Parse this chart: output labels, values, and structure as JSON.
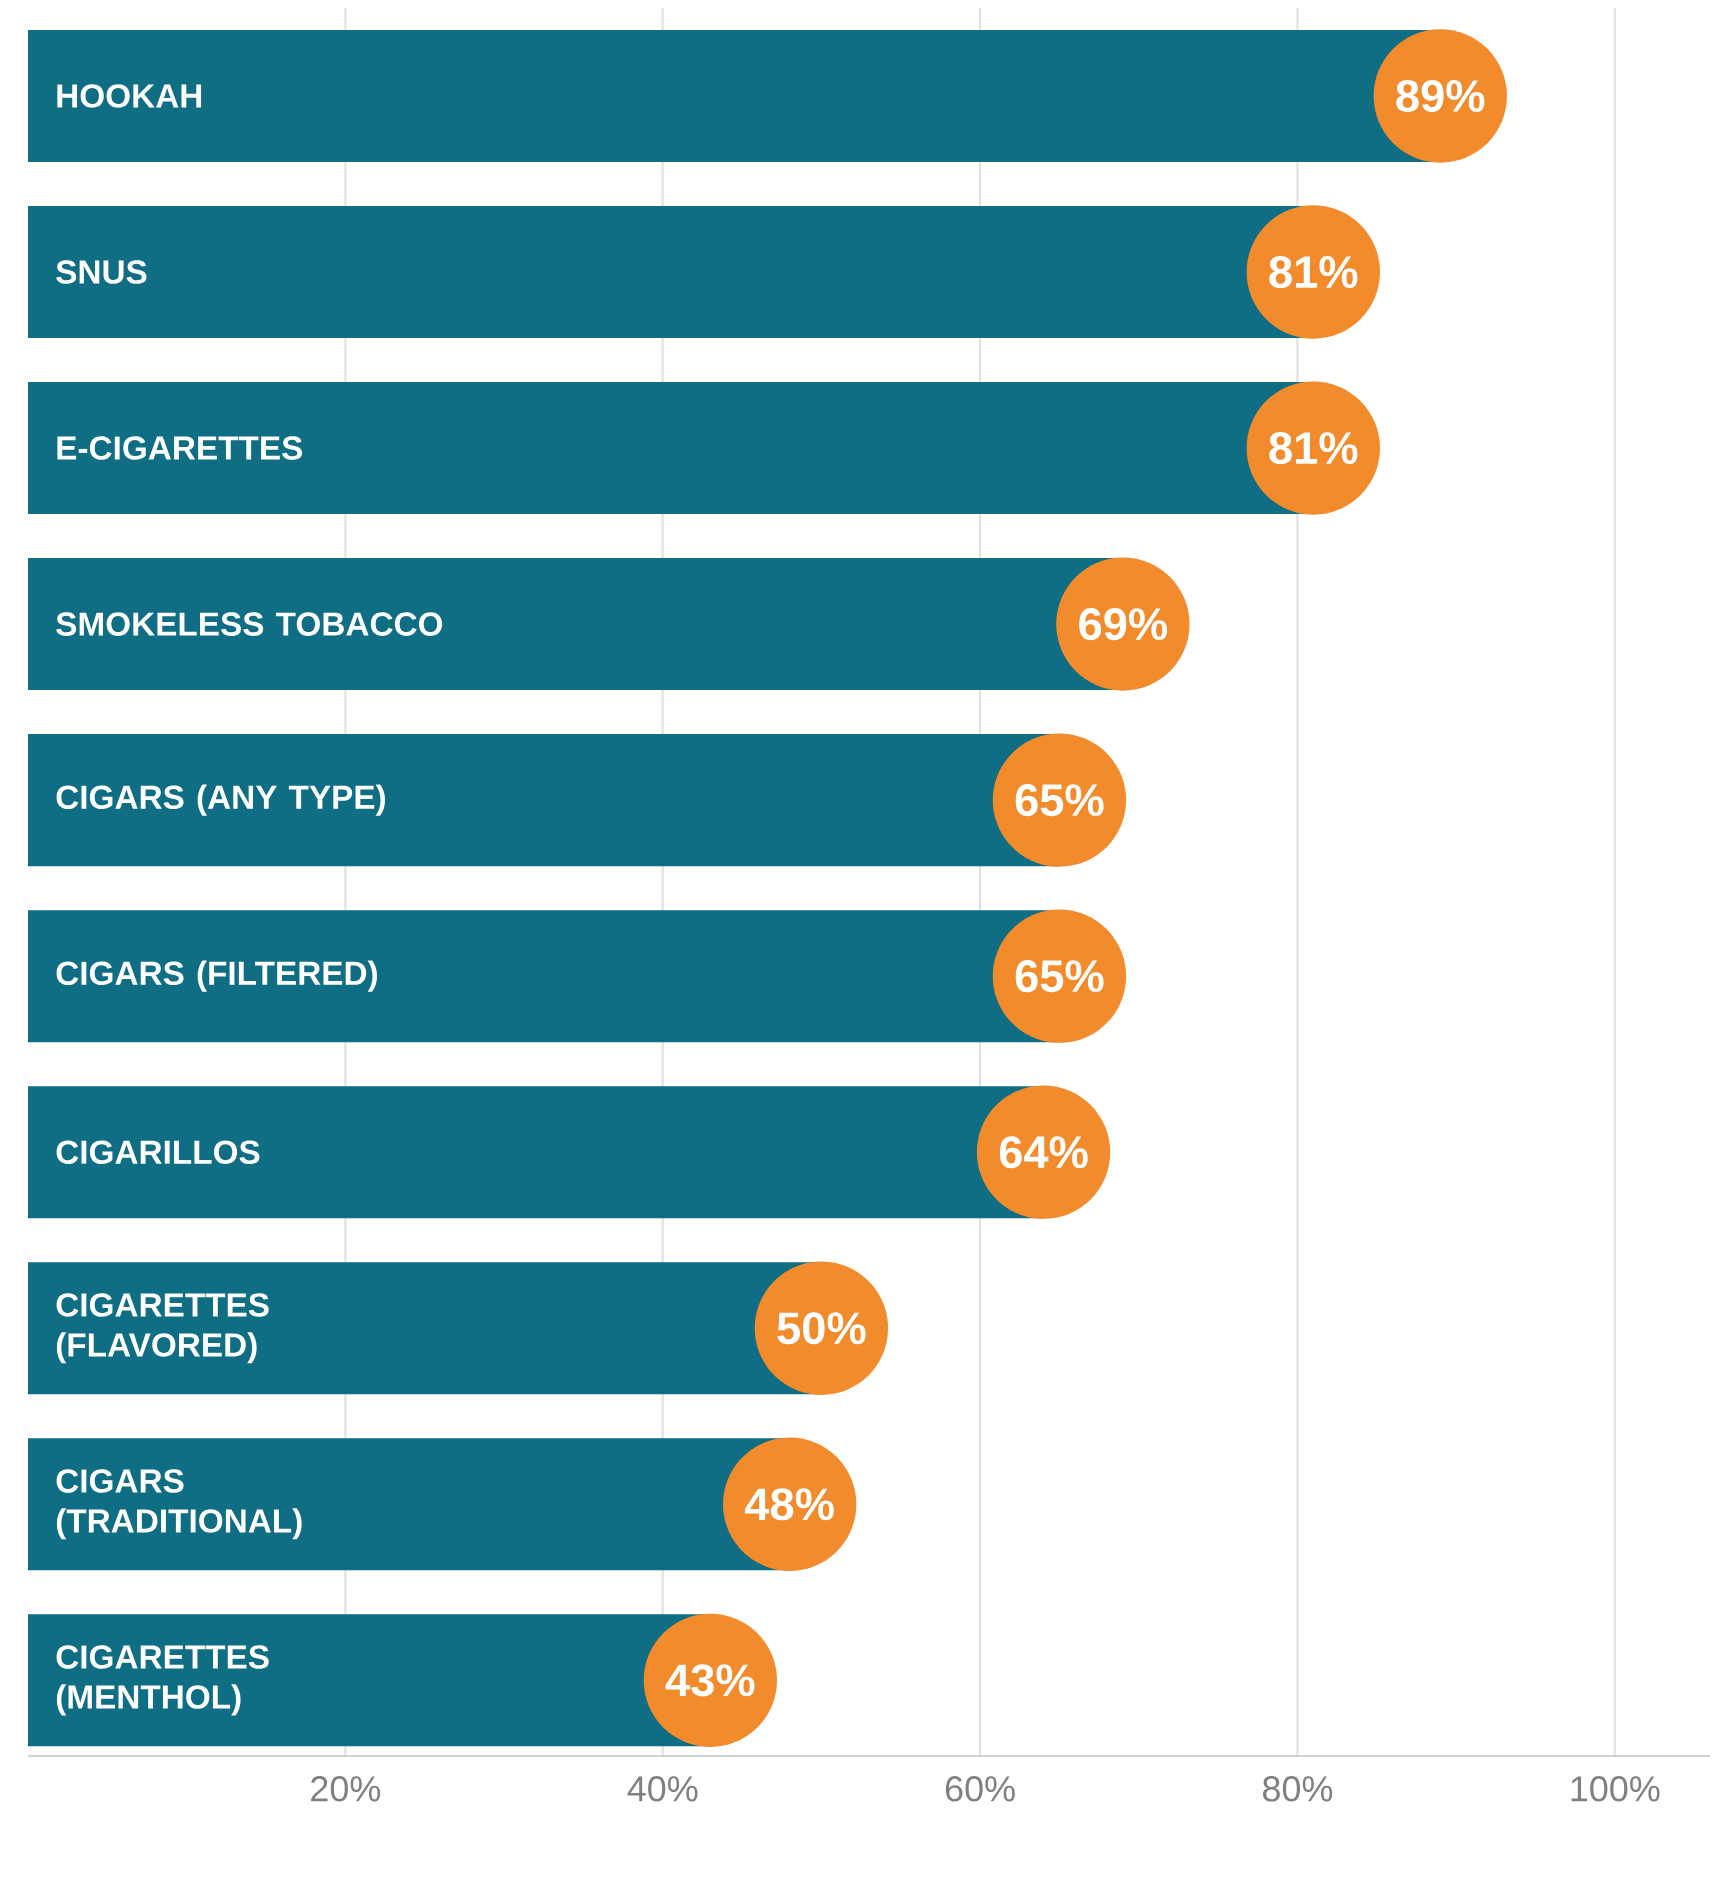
{
  "chart_data": {
    "type": "bar",
    "orientation": "horizontal",
    "categories": [
      "HOOKAH",
      "SNUS",
      "E-CIGARETTES",
      "SMOKELESS TOBACCO",
      "CIGARS (ANY TYPE)",
      "CIGARS (FILTERED)",
      "CIGARILLOS",
      "CIGARETTES (FLAVORED)",
      "CIGARS (TRADITIONAL)",
      "CIGARETTES (MENTHOL)"
    ],
    "values": [
      89,
      81,
      81,
      69,
      65,
      65,
      64,
      50,
      48,
      43
    ],
    "value_labels": [
      "89%",
      "81%",
      "81%",
      "69%",
      "65%",
      "65%",
      "64%",
      "50%",
      "48%",
      "43%"
    ],
    "color": "#0f6d84",
    "xlim": [
      0,
      106
    ],
    "xticks": [
      {
        "value": 20,
        "label": "20%"
      },
      {
        "value": 40,
        "label": "40%"
      },
      {
        "value": 60,
        "label": "60%"
      },
      {
        "value": 80,
        "label": "80%"
      },
      {
        "value": 100,
        "label": "100%"
      }
    ],
    "grid": "x"
  }
}
